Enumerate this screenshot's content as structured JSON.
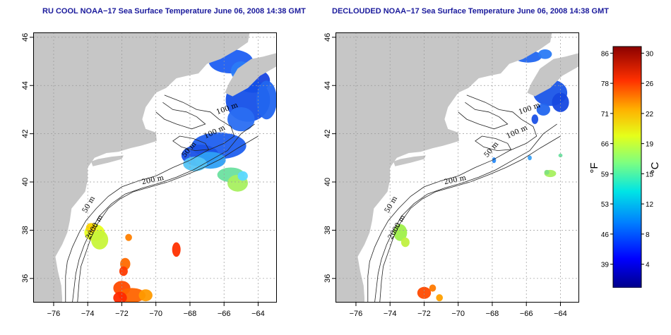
{
  "titles": {
    "left": "RU COOL NOAA−17 Sea Surface Temperature June 06, 2008 14:38 GMT",
    "right": "DECLOUDED NOAA−17 Sea Surface Temperature June 06, 2008 14:38 GMT"
  },
  "axes": {
    "lon_ticks": [
      -76,
      -74,
      -72,
      -70,
      -68,
      -66,
      -64
    ],
    "lat_ticks": [
      36,
      38,
      40,
      42,
      44,
      46
    ],
    "lon_labels": [
      "−76",
      "−74",
      "−72",
      "−70",
      "−68",
      "−66",
      "−64"
    ],
    "lat_labels": [
      "36",
      "38",
      "40",
      "42",
      "44",
      "46"
    ],
    "lon_range": [
      -77.2,
      -62.9
    ],
    "lat_range": [
      35.0,
      46.2
    ]
  },
  "contour_labels": [
    {
      "text": "100 m",
      "lon": -66.4,
      "lat": 42.8,
      "angle": -20
    },
    {
      "text": "100 m",
      "lon": -67.1,
      "lat": 41.8,
      "angle": -25
    },
    {
      "text": "50 m",
      "lon": -68.3,
      "lat": 41.0,
      "angle": -50
    },
    {
      "text": "200 m",
      "lon": -70.8,
      "lat": 39.9,
      "angle": -12
    },
    {
      "text": "50 m",
      "lon": -74.1,
      "lat": 38.7,
      "angle": -60
    },
    {
      "text": "2000 m",
      "lon": -73.9,
      "lat": 37.6,
      "angle": -60
    }
  ],
  "colorbar": {
    "fahrenheit_labels": [
      "39",
      "46",
      "53",
      "59",
      "66",
      "71",
      "78",
      "86"
    ],
    "celsius_labels": [
      "4",
      "8",
      "12",
      "15",
      "19",
      "22",
      "26",
      "30"
    ],
    "unit_f": "°F",
    "unit_c": "°C"
  },
  "colors": {
    "land": "#c6c6c6",
    "water": "#ffffff",
    "grid": "#9a9a9a",
    "title": "#1a1a9c"
  }
}
